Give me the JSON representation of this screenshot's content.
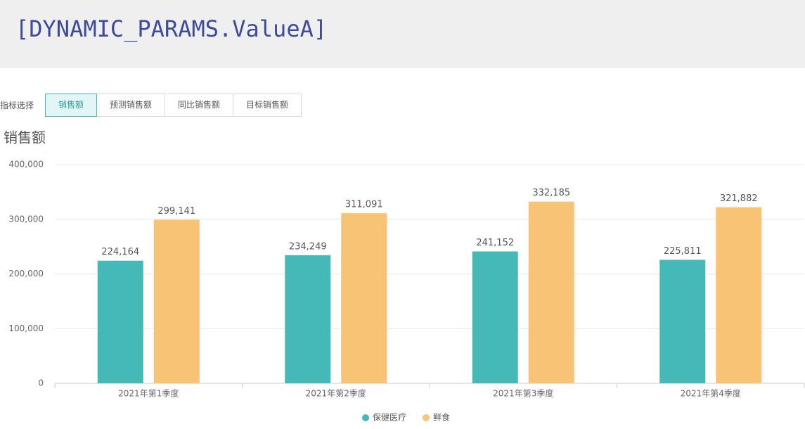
{
  "header": {
    "title": "[DYNAMIC_PARAMS.ValueA]"
  },
  "filter": {
    "label": "指标选择",
    "tabs": [
      "销售额",
      "预测销售额",
      "同比销售额",
      "目标销售额"
    ],
    "active": 0
  },
  "chart_data": {
    "type": "bar",
    "title": "销售额",
    "categories": [
      "2021年第1季度",
      "2021年第2季度",
      "2021年第3季度",
      "2021年第4季度"
    ],
    "series": [
      {
        "name": "保健医疗",
        "color": "#45b8b8",
        "values": [
          224164,
          234249,
          241152,
          225811
        ],
        "value_labels": [
          "224,164",
          "234,249",
          "241,152",
          "225,811"
        ]
      },
      {
        "name": "鲜食",
        "color": "#f8c374",
        "values": [
          299141,
          311091,
          332185,
          321882
        ],
        "value_labels": [
          "299,141",
          "311,091",
          "332,185",
          "321,882"
        ]
      }
    ],
    "ylim": [
      0,
      400000
    ],
    "yticks": [
      0,
      {
        "value": 100000,
        "label": "100,000"
      },
      {
        "value": 200000,
        "label": "200,000"
      },
      {
        "value": 300000,
        "label": "300,000"
      },
      {
        "value": 400000,
        "label": "400,000"
      }
    ],
    "grid": true,
    "legend": "bottom"
  }
}
